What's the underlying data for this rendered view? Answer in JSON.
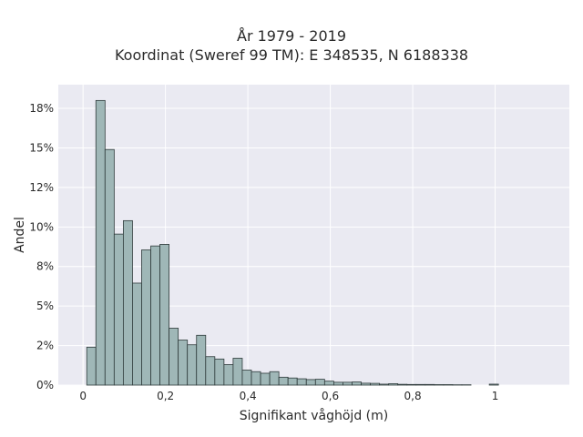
{
  "chart_data": {
    "type": "bar",
    "title": [
      "År 1979 - 2019",
      "Koordinat (Sweref 99 TM): E 348535, N 6188338"
    ],
    "xlabel": "Signifikant våghöjd (m)",
    "ylabel": "Andel",
    "xlim": [
      -0.06,
      1.18
    ],
    "ylim": [
      0,
      0.19
    ],
    "x_ticks": [
      0,
      0.2,
      0.4,
      0.6,
      0.8,
      1
    ],
    "x_tick_labels": [
      "0",
      "0,2",
      "0,4",
      "0,6",
      "0,8",
      "1"
    ],
    "y_ticks": [
      0,
      0.025,
      0.05,
      0.075,
      0.1,
      0.125,
      0.15,
      0.175
    ],
    "y_tick_labels": [
      "0%",
      "2%",
      "5%",
      "8%",
      "10%",
      "12%",
      "15%",
      "18%"
    ],
    "grid": true,
    "bin_width": 0.0222,
    "bin_start": 0.009,
    "values": [
      0.024,
      0.18,
      0.149,
      0.0955,
      0.104,
      0.0645,
      0.0855,
      0.088,
      0.089,
      0.036,
      0.0285,
      0.0255,
      0.0315,
      0.018,
      0.0165,
      0.013,
      0.017,
      0.0095,
      0.0085,
      0.0075,
      0.0085,
      0.005,
      0.0045,
      0.004,
      0.0035,
      0.0037,
      0.0025,
      0.0018,
      0.0018,
      0.002,
      0.0012,
      0.0011,
      0.0006,
      0.0009,
      0.0005,
      0.0004,
      0.0004,
      0.0004,
      0.0003,
      0.0003,
      0.0002,
      0.0002,
      0.0,
      0.0,
      0.0006
    ],
    "colors": {
      "bar_fill": "#9fb7b7",
      "bar_edge": "#2e3a3a",
      "plot_bg": "#eaeaf2",
      "grid": "#ffffff"
    }
  }
}
